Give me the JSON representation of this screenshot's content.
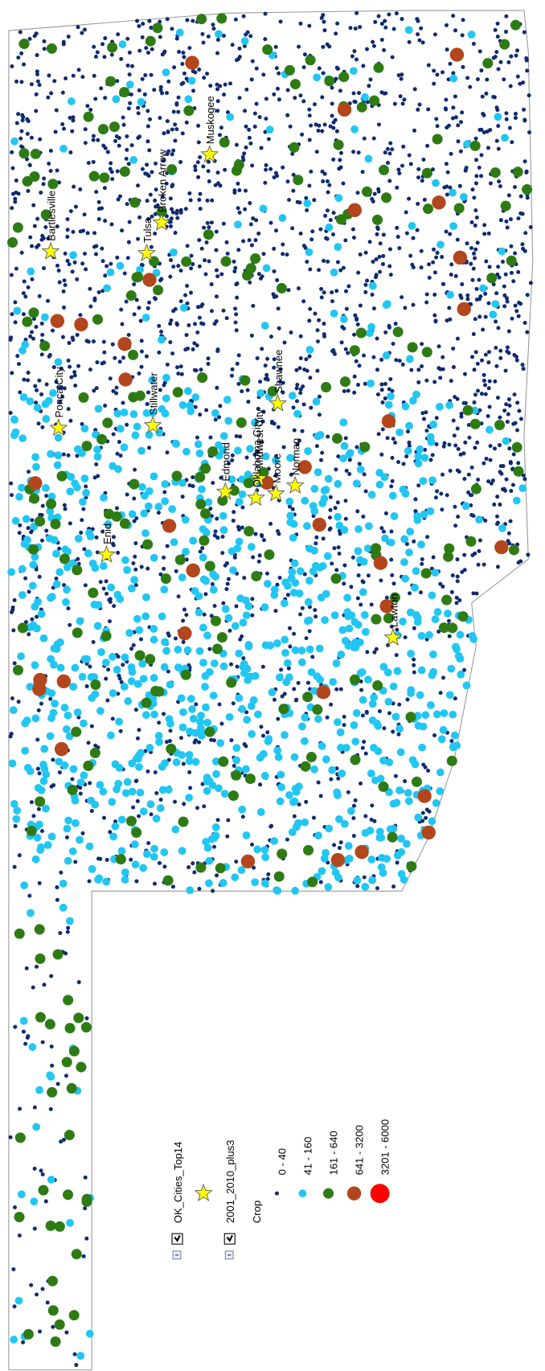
{
  "map": {
    "cities": [
      {
        "label": "Bartlesville"
      },
      {
        "label": "Tulsa"
      },
      {
        "label": "Broken Arrow"
      },
      {
        "label": "Muskogee"
      },
      {
        "label": "Ponca City"
      },
      {
        "label": "Stillwater"
      },
      {
        "label": "Enid"
      },
      {
        "label": "Edmond"
      },
      {
        "label": "Midwest City"
      },
      {
        "label": "Shawnee"
      },
      {
        "label": "Moore"
      },
      {
        "label": "Norman"
      },
      {
        "label": "Oklahoma City"
      },
      {
        "label": "Lawton"
      }
    ],
    "legend": {
      "cities_layer": "OK_Cities_Top14",
      "wells_layer": "2001_2010_plus3",
      "field": "Crop",
      "classes": [
        {
          "label": "0 - 40",
          "color": "#0f2a70"
        },
        {
          "label": "41 - 160",
          "color": "#22c6f2"
        },
        {
          "label": "161 - 640",
          "color": "#2e7b14"
        },
        {
          "label": "641 - 3200",
          "color": "#b3461c"
        },
        {
          "label": "3201 - 6000",
          "color": "#ff0000"
        }
      ]
    }
  }
}
